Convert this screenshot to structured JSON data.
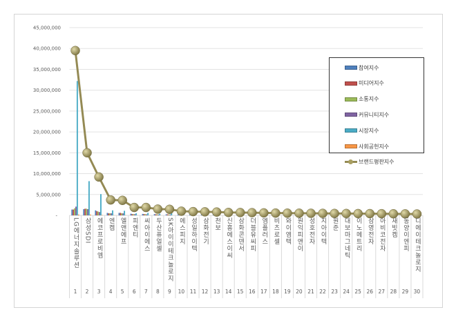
{
  "chart_data": {
    "type": "bar+line",
    "title": "",
    "ylim": [
      0,
      45000000
    ],
    "yticks": [
      "-",
      "5,000,000",
      "10,000,000",
      "15,000,000",
      "20,000,000",
      "25,000,000",
      "30,000,000",
      "35,000,000",
      "40,000,000",
      "45,000,000"
    ],
    "grid": true,
    "legend_position": "top-right",
    "categories": [
      "LG에너지솔루션",
      "삼성SDI",
      "에코프로비엠",
      "엔켐",
      "엘앤에프",
      "피엔티",
      "씨아이에스",
      "두산퓨얼셀",
      "SK아이이테크놀로지",
      "에스피지",
      "성일하이텍",
      "삼화전기",
      "천보",
      "신흥에스이씨",
      "삼화콘덴서",
      "더블유씨피",
      "엠플러스",
      "비츠로셀",
      "와이엠텍",
      "원익피앤이",
      "성호전자",
      "지아이텍",
      "원준",
      "대보마그네틱",
      "이노메트리",
      "삼영전자",
      "아비코전자",
      "새빗켐",
      "동양이엔피",
      "디에이테크놀로지"
    ],
    "numbers": [
      "1",
      "2",
      "3",
      "4",
      "5",
      "6",
      "7",
      "8",
      "9",
      "10",
      "11",
      "12",
      "13",
      "14",
      "15",
      "16",
      "17",
      "18",
      "19",
      "20",
      "21",
      "22",
      "23",
      "24",
      "25",
      "26",
      "27",
      "28",
      "29",
      "30"
    ],
    "series": [
      {
        "name": "참여지수",
        "kind": "bar",
        "color": "#4f81bd",
        "values": [
          1400000,
          1500000,
          1200000,
          600000,
          600000,
          400000,
          350000,
          300000,
          250000,
          200000,
          180000,
          170000,
          160000,
          150000,
          140000,
          130000,
          120000,
          110000,
          100000,
          100000,
          90000,
          90000,
          80000,
          80000,
          70000,
          70000,
          60000,
          60000,
          50000,
          50000
        ]
      },
      {
        "name": "미디어지수",
        "kind": "bar",
        "color": "#c0504d",
        "values": [
          1400000,
          1600000,
          1000000,
          500000,
          600000,
          300000,
          300000,
          250000,
          250000,
          200000,
          160000,
          150000,
          150000,
          140000,
          130000,
          120000,
          110000,
          100000,
          90000,
          90000,
          80000,
          80000,
          70000,
          70000,
          60000,
          60000,
          60000,
          50000,
          50000,
          40000
        ]
      },
      {
        "name": "소통지수",
        "kind": "bar",
        "color": "#9bbb59",
        "values": [
          1700000,
          1600000,
          900000,
          500000,
          500000,
          300000,
          300000,
          250000,
          200000,
          180000,
          150000,
          150000,
          140000,
          130000,
          120000,
          110000,
          100000,
          90000,
          90000,
          80000,
          80000,
          70000,
          70000,
          60000,
          60000,
          50000,
          50000,
          50000,
          40000,
          40000
        ]
      },
      {
        "name": "커뮤니티지수",
        "kind": "bar",
        "color": "#8064a2",
        "values": [
          2100000,
          1500000,
          800000,
          500000,
          500000,
          300000,
          250000,
          200000,
          200000,
          150000,
          130000,
          120000,
          110000,
          100000,
          100000,
          90000,
          90000,
          80000,
          80000,
          70000,
          70000,
          60000,
          60000,
          50000,
          50000,
          50000,
          40000,
          40000,
          40000,
          30000
        ]
      },
      {
        "name": "시장지수",
        "kind": "bar",
        "color": "#4bacc6",
        "values": [
          32200000,
          8200000,
          5100000,
          1200000,
          1100000,
          500000,
          600000,
          400000,
          500000,
          250000,
          250000,
          250000,
          250000,
          200000,
          200000,
          200000,
          150000,
          150000,
          150000,
          150000,
          120000,
          120000,
          100000,
          100000,
          100000,
          80000,
          80000,
          80000,
          70000,
          60000
        ]
      },
      {
        "name": "사회공헌지수",
        "kind": "bar",
        "color": "#f79646",
        "values": [
          200000,
          200000,
          100000,
          50000,
          50000,
          20000,
          20000,
          20000,
          20000,
          10000,
          10000,
          10000,
          10000,
          10000,
          10000,
          10000,
          10000,
          10000,
          10000,
          10000,
          10000,
          10000,
          10000,
          10000,
          10000,
          10000,
          10000,
          10000,
          10000,
          10000
        ]
      },
      {
        "name": "브랜드평판지수",
        "kind": "line",
        "color": "#948a54",
        "values": [
          39500000,
          15000000,
          9200000,
          3700000,
          3600000,
          1900000,
          1900000,
          1500000,
          1450000,
          1000000,
          900000,
          850000,
          800000,
          700000,
          680000,
          650000,
          600000,
          550000,
          530000,
          520000,
          500000,
          480000,
          460000,
          450000,
          430000,
          420000,
          400000,
          380000,
          360000,
          330000
        ]
      }
    ]
  }
}
